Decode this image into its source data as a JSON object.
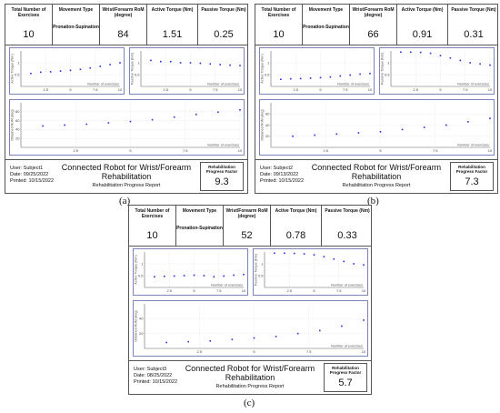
{
  "header_labels": {
    "exercises": "Total Number of Exercises",
    "movement": "Movement Type",
    "rom": "Wrist/Forearm RoM (degree)",
    "active": "Active Torque (Nm)",
    "passive": "Passive Torque (Nm)"
  },
  "axis_labels": {
    "active_torque": "Active Torque (Nm)",
    "passive_torque": "Passive Torque (Nm)",
    "obtained_rom": "Obtained RoM (deg)",
    "exercises": "Number of exercises"
  },
  "footer_labels": {
    "user_prefix": "User:",
    "date_prefix": "Date:",
    "printed_prefix": "Printed:",
    "title": "Connected Robot for Wrist/Forearm Rehabilitation",
    "subtitle": "Rehabilitation Progress Report",
    "factor_label": "Rehabilitation Progress Factor"
  },
  "panels": [
    {
      "caption": "(a)",
      "exercises": "10",
      "movement": "Pronation-Supination",
      "rom": "84",
      "active": "1.51",
      "passive": "0.25",
      "user": "Subject1",
      "date": "09/25/2022",
      "printed": "10/15/2022",
      "factor": "9.3"
    },
    {
      "caption": "(b)",
      "exercises": "10",
      "movement": "Pronation-Supination",
      "rom": "66",
      "active": "0.91",
      "passive": "0.31",
      "user": "Subject2",
      "date": "09/13/2022",
      "printed": "10/15/2022",
      "factor": "7.3"
    },
    {
      "caption": "(c)",
      "exercises": "10",
      "movement": "Pronation-Supination",
      "rom": "52",
      "active": "0.78",
      "passive": "0.33",
      "user": "Subject3",
      "date": "08/25/2022",
      "printed": "10/15/2022",
      "factor": "5.7"
    }
  ],
  "chart_data": [
    {
      "panel": 0,
      "plot": "active",
      "type": "scatter",
      "xlim": [
        0,
        10
      ],
      "ylim": [
        0,
        1.5
      ],
      "xticks": [
        2.5,
        5,
        7.5,
        10
      ],
      "yticks": [
        0.5,
        1
      ],
      "x": [
        1,
        2,
        3,
        4,
        5,
        6,
        7,
        8,
        9,
        10
      ],
      "y": [
        0.55,
        0.6,
        0.62,
        0.65,
        0.68,
        0.72,
        0.78,
        0.85,
        0.92,
        1.0
      ],
      "xlabel": "Number of exercises",
      "ylabel": "Active Torque (Nm)"
    },
    {
      "panel": 0,
      "plot": "passive",
      "type": "scatter",
      "xlim": [
        0,
        10
      ],
      "ylim": [
        0,
        1.5
      ],
      "xticks": [
        2.5,
        5,
        7.5,
        10
      ],
      "yticks": [
        0.5,
        1
      ],
      "x": [
        1,
        2,
        3,
        4,
        5,
        6,
        7,
        8,
        9,
        10
      ],
      "y": [
        1.1,
        1.05,
        1.05,
        1.0,
        1.0,
        0.98,
        0.95,
        0.92,
        0.9,
        0.88
      ],
      "xlabel": "Number of exercises",
      "ylabel": "Passive Torque (Nm)"
    },
    {
      "panel": 0,
      "plot": "rom",
      "type": "scatter",
      "xlim": [
        0,
        10
      ],
      "ylim": [
        0,
        100
      ],
      "xticks": [
        2.5,
        5,
        7.5,
        10
      ],
      "yticks": [
        20,
        40,
        60,
        80
      ],
      "x": [
        1,
        2,
        3,
        4,
        5,
        6,
        7,
        8,
        9,
        10
      ],
      "y": [
        48,
        50,
        52,
        55,
        58,
        62,
        68,
        74,
        79,
        84
      ],
      "xlabel": "Number of exercises",
      "ylabel": "Obtained RoM (deg)"
    },
    {
      "panel": 1,
      "plot": "active",
      "type": "scatter",
      "xlim": [
        0,
        10
      ],
      "ylim": [
        0,
        1.5
      ],
      "xticks": [
        2.5,
        5,
        7.5,
        10
      ],
      "yticks": [
        0.5,
        1
      ],
      "x": [
        1,
        2,
        3,
        4,
        5,
        6,
        7,
        8,
        9,
        10
      ],
      "y": [
        0.3,
        0.32,
        0.33,
        0.35,
        0.37,
        0.4,
        0.44,
        0.48,
        0.52,
        0.55
      ],
      "xlabel": "Number of exercises",
      "ylabel": "Active Torque (Nm)"
    },
    {
      "panel": 1,
      "plot": "passive",
      "type": "scatter",
      "xlim": [
        0,
        10
      ],
      "ylim": [
        0,
        1.5
      ],
      "xticks": [
        2.5,
        5,
        7.5,
        10
      ],
      "yticks": [
        0.5,
        1
      ],
      "x": [
        1,
        2,
        3,
        4,
        5,
        6,
        7,
        8,
        9,
        10
      ],
      "y": [
        1.45,
        1.45,
        1.44,
        1.4,
        1.3,
        1.2,
        1.1,
        1.0,
        0.95,
        0.9
      ],
      "xlabel": "Number of exercises",
      "ylabel": "Passive Torque (Nm)"
    },
    {
      "panel": 1,
      "plot": "rom",
      "type": "scatter",
      "xlim": [
        0,
        10
      ],
      "ylim": [
        0,
        80
      ],
      "xticks": [
        2.5,
        5,
        7.5,
        10
      ],
      "yticks": [
        20,
        40,
        60
      ],
      "x": [
        1,
        2,
        3,
        4,
        5,
        6,
        7,
        8,
        9,
        10
      ],
      "y": [
        20,
        22,
        24,
        26,
        28,
        32,
        36,
        40,
        46,
        52
      ],
      "xlabel": "Number of exercises",
      "ylabel": "Obtained RoM (deg)"
    },
    {
      "panel": 2,
      "plot": "active",
      "type": "scatter",
      "xlim": [
        0,
        10
      ],
      "ylim": [
        0,
        1.5
      ],
      "xticks": [
        2.5,
        5,
        7.5,
        10
      ],
      "yticks": [
        0.5,
        1
      ],
      "x": [
        1,
        2,
        3,
        4,
        5,
        6,
        7,
        8,
        9,
        10
      ],
      "y": [
        0.45,
        0.47,
        0.48,
        0.5,
        0.52,
        0.5,
        0.45,
        0.48,
        0.52,
        0.55
      ],
      "xlabel": "Number of exercises",
      "ylabel": "Active Torque (Nm)"
    },
    {
      "panel": 2,
      "plot": "passive",
      "type": "scatter",
      "xlim": [
        0,
        10
      ],
      "ylim": [
        0,
        1.5
      ],
      "xticks": [
        2.5,
        5,
        7.5,
        10
      ],
      "yticks": [
        0.5,
        1
      ],
      "x": [
        1,
        2,
        3,
        4,
        5,
        6,
        7,
        8,
        9,
        10
      ],
      "y": [
        1.45,
        1.45,
        1.44,
        1.42,
        1.38,
        1.3,
        1.2,
        1.1,
        1.0,
        0.95
      ],
      "xlabel": "Number of exercises",
      "ylabel": "Passive Torque (Nm)"
    },
    {
      "panel": 2,
      "plot": "rom",
      "type": "scatter",
      "xlim": [
        0,
        10
      ],
      "ylim": [
        0,
        60
      ],
      "xticks": [
        2.5,
        5,
        7.5,
        10
      ],
      "yticks": [
        20,
        40
      ],
      "x": [
        1,
        2,
        3,
        4,
        5,
        6,
        7,
        8,
        9,
        10
      ],
      "y": [
        8,
        9,
        10,
        12,
        14,
        16,
        20,
        24,
        30,
        38
      ],
      "xlabel": "Number of exercises",
      "ylabel": "Obtained RoM (deg)"
    }
  ]
}
